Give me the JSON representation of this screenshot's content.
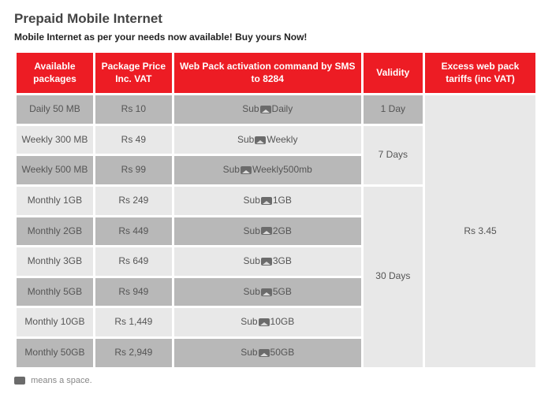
{
  "title": "Prepaid Mobile Internet",
  "subtitle": "Mobile Internet as per your needs now available! Buy yours Now!",
  "headers": {
    "packages": "Available packages",
    "price": "Package Price Inc. VAT",
    "command": "Web Pack activation command by SMS to 8284",
    "validity": "Validity",
    "excess": "Excess web pack tariffs (inc VAT)"
  },
  "colwidths": {
    "packages": 90,
    "price": 90,
    "command": 220,
    "validity": 70,
    "excess": 130
  },
  "sms_prefix": "Sub",
  "rows": [
    {
      "pkg": "Daily 50 MB",
      "price": "Rs 10",
      "cmd_suffix": "Daily",
      "shade": "dark"
    },
    {
      "pkg": "Weekly 300 MB",
      "price": "Rs 49",
      "cmd_suffix": "Weekly",
      "shade": "light"
    },
    {
      "pkg": "Weekly 500 MB",
      "price": "Rs 99",
      "cmd_suffix": "Weekly500mb",
      "shade": "dark"
    },
    {
      "pkg": "Monthly 1GB",
      "price": "Rs 249",
      "cmd_suffix": "1GB",
      "shade": "light"
    },
    {
      "pkg": "Monthly 2GB",
      "price": "Rs 449",
      "cmd_suffix": "2GB",
      "shade": "dark"
    },
    {
      "pkg": "Monthly 3GB",
      "price": "Rs 649",
      "cmd_suffix": "3GB",
      "shade": "light"
    },
    {
      "pkg": "Monthly 5GB",
      "price": "Rs 949",
      "cmd_suffix": "5GB",
      "shade": "dark"
    },
    {
      "pkg": "Monthly 10GB",
      "price": "Rs 1,449",
      "cmd_suffix": "10GB",
      "shade": "light"
    },
    {
      "pkg": "Monthly 50GB",
      "price": "Rs 2,949",
      "cmd_suffix": "50GB",
      "shade": "dark"
    }
  ],
  "validity": {
    "day1": {
      "label": "1 Day",
      "shade": "dark",
      "rowspan": 1
    },
    "days7": {
      "label": "7 Days",
      "shade": "light",
      "rowspan": 2
    },
    "days30": {
      "label": "30 Days",
      "shade": "light",
      "rowspan": 6
    }
  },
  "excess": {
    "label": "Rs 3.45",
    "shade": "light",
    "rowspan": 9
  },
  "footnote": "means a space.",
  "colors": {
    "header_bg": "#ed1c24",
    "header_fg": "#ffffff",
    "dark_cell": "#b8b8b8",
    "light_cell": "#e8e8e8",
    "text": "#555555"
  }
}
